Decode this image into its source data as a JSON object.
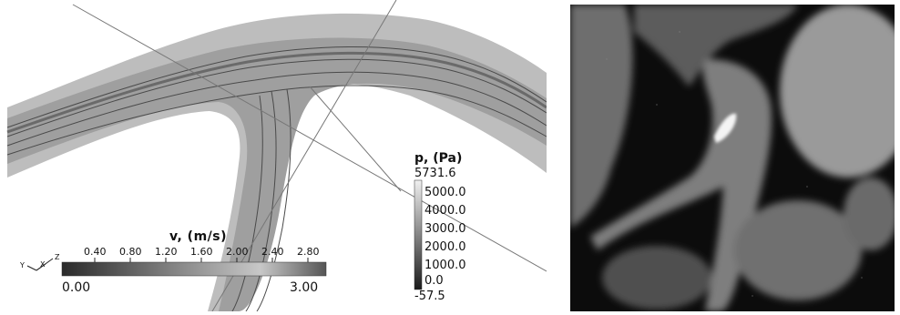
{
  "velocity_legend": {
    "title": "v,  (m/s)",
    "ticks": [
      "0.40",
      "0.80",
      "1.20",
      "1.60",
      "2.00",
      "2.40",
      "2.80"
    ],
    "min": "0.00",
    "max": "3.00"
  },
  "pressure_legend": {
    "title": "p, (Pa)",
    "max": "5731.6",
    "ticks": [
      "5000.0",
      "4000.0",
      "3000.0",
      "2000.0",
      "1000.0",
      "0.0"
    ],
    "min": "-57.5"
  },
  "orientation_axes": {
    "labels": [
      "Y",
      "X",
      "Z"
    ]
  },
  "colors": {
    "vessel": "#9a9a9a",
    "streamline": "#4a4a4a",
    "ct_background": "#0c0c0c"
  }
}
